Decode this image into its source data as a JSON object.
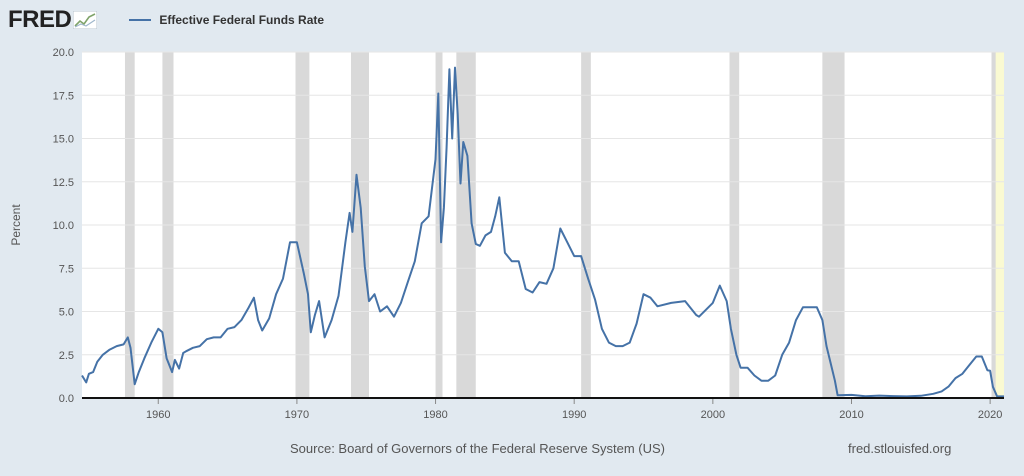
{
  "header": {
    "logo_text": "FRED",
    "logo_icon": "line-chart-icon"
  },
  "footer": {
    "source": "Source: Board of Governors of the Federal Reserve System (US)",
    "url": "fred.stlouisfed.org"
  },
  "colors": {
    "line": "#4572a7",
    "recession": "#d9d9d9",
    "plot_bg": "#ffffff",
    "page_bg": "#e1e9f0",
    "forecast_band": "#fafad2"
  },
  "chart_data": {
    "type": "line",
    "title": "",
    "xlabel": "",
    "ylabel": "Percent",
    "xlim": [
      1954.5,
      2021.0
    ],
    "ylim": [
      0,
      20
    ],
    "x_ticks": [
      1960,
      1970,
      1980,
      1990,
      2000,
      2010,
      2020
    ],
    "y_ticks": [
      "0.0",
      "2.5",
      "5.0",
      "7.5",
      "10.0",
      "12.5",
      "15.0",
      "17.5",
      "20.0"
    ],
    "grid": "horizontal",
    "legend": "top-left",
    "recessions": [
      [
        1957.6,
        1958.3
      ],
      [
        1960.3,
        1961.1
      ],
      [
        1969.9,
        1970.9
      ],
      [
        1973.9,
        1975.2
      ],
      [
        1980.0,
        1980.5
      ],
      [
        1981.5,
        1982.9
      ],
      [
        1990.5,
        1991.2
      ],
      [
        2001.2,
        2001.9
      ],
      [
        2007.9,
        2009.5
      ],
      [
        2020.1,
        2020.4
      ]
    ],
    "highlight_band": [
      2020.1,
      2021.0
    ],
    "series": [
      {
        "name": "Effective Federal Funds Rate",
        "x": [
          1954.5,
          1954.8,
          1955.0,
          1955.3,
          1955.6,
          1956.0,
          1956.5,
          1957.0,
          1957.5,
          1957.8,
          1958.0,
          1958.3,
          1958.6,
          1959.0,
          1959.5,
          1960.0,
          1960.3,
          1960.6,
          1961.0,
          1961.2,
          1961.5,
          1961.8,
          1962.0,
          1962.5,
          1963.0,
          1963.5,
          1964.0,
          1964.5,
          1965.0,
          1965.5,
          1966.0,
          1966.5,
          1966.9,
          1967.2,
          1967.5,
          1968.0,
          1968.5,
          1969.0,
          1969.5,
          1970.0,
          1970.5,
          1970.8,
          1971.0,
          1971.3,
          1971.6,
          1972.0,
          1972.5,
          1973.0,
          1973.5,
          1973.8,
          1974.0,
          1974.3,
          1974.6,
          1974.9,
          1975.2,
          1975.6,
          1976.0,
          1976.5,
          1977.0,
          1977.5,
          1978.0,
          1978.5,
          1979.0,
          1979.5,
          1980.0,
          1980.2,
          1980.4,
          1980.6,
          1980.8,
          1981.0,
          1981.2,
          1981.4,
          1981.6,
          1981.8,
          1982.0,
          1982.3,
          1982.6,
          1982.9,
          1983.2,
          1983.6,
          1984.0,
          1984.3,
          1984.6,
          1985.0,
          1985.5,
          1986.0,
          1986.5,
          1987.0,
          1987.5,
          1988.0,
          1988.5,
          1989.0,
          1989.5,
          1990.0,
          1990.5,
          1991.0,
          1991.5,
          1992.0,
          1992.5,
          1993.0,
          1993.5,
          1994.0,
          1994.5,
          1995.0,
          1995.5,
          1996.0,
          1997.0,
          1998.0,
          1998.8,
          1999.0,
          1999.5,
          2000.0,
          2000.5,
          2001.0,
          2001.3,
          2001.7,
          2002.0,
          2002.5,
          2003.0,
          2003.5,
          2004.0,
          2004.5,
          2005.0,
          2005.5,
          2006.0,
          2006.5,
          2007.0,
          2007.5,
          2007.9,
          2008.2,
          2008.5,
          2008.8,
          2009.0,
          2010.0,
          2011.0,
          2012.0,
          2013.0,
          2014.0,
          2015.0,
          2015.9,
          2016.5,
          2017.0,
          2017.5,
          2018.0,
          2018.5,
          2019.0,
          2019.4,
          2019.8,
          2020.0,
          2020.2,
          2020.5,
          2021.0
        ],
        "y": [
          1.3,
          0.9,
          1.4,
          1.5,
          2.1,
          2.5,
          2.8,
          3.0,
          3.1,
          3.5,
          2.9,
          0.8,
          1.5,
          2.3,
          3.2,
          4.0,
          3.8,
          2.3,
          1.5,
          2.2,
          1.7,
          2.6,
          2.7,
          2.9,
          3.0,
          3.4,
          3.5,
          3.5,
          4.0,
          4.1,
          4.5,
          5.2,
          5.8,
          4.5,
          3.9,
          4.6,
          6.0,
          6.9,
          9.0,
          9.0,
          7.2,
          6.0,
          3.8,
          4.8,
          5.6,
          3.5,
          4.5,
          5.9,
          9.0,
          10.7,
          9.6,
          12.9,
          11.0,
          7.6,
          5.6,
          6.0,
          5.0,
          5.3,
          4.7,
          5.5,
          6.7,
          7.9,
          10.1,
          10.5,
          13.8,
          17.6,
          9.0,
          11.0,
          14.5,
          19.0,
          15.0,
          19.1,
          16.4,
          12.4,
          14.8,
          14.0,
          10.1,
          8.9,
          8.8,
          9.4,
          9.6,
          10.5,
          11.6,
          8.4,
          7.9,
          7.9,
          6.3,
          6.1,
          6.7,
          6.6,
          7.5,
          9.8,
          9.0,
          8.2,
          8.2,
          6.9,
          5.7,
          4.0,
          3.2,
          3.0,
          3.0,
          3.2,
          4.3,
          6.0,
          5.8,
          5.3,
          5.5,
          5.6,
          4.8,
          4.7,
          5.1,
          5.5,
          6.5,
          5.6,
          4.0,
          2.5,
          1.75,
          1.75,
          1.3,
          1.0,
          1.0,
          1.3,
          2.5,
          3.2,
          4.5,
          5.25,
          5.25,
          5.25,
          4.5,
          3.0,
          2.0,
          1.0,
          0.16,
          0.18,
          0.1,
          0.14,
          0.11,
          0.09,
          0.13,
          0.24,
          0.38,
          0.66,
          1.15,
          1.4,
          1.9,
          2.4,
          2.4,
          1.6,
          1.58,
          0.65,
          0.09,
          0.09
        ]
      }
    ]
  }
}
